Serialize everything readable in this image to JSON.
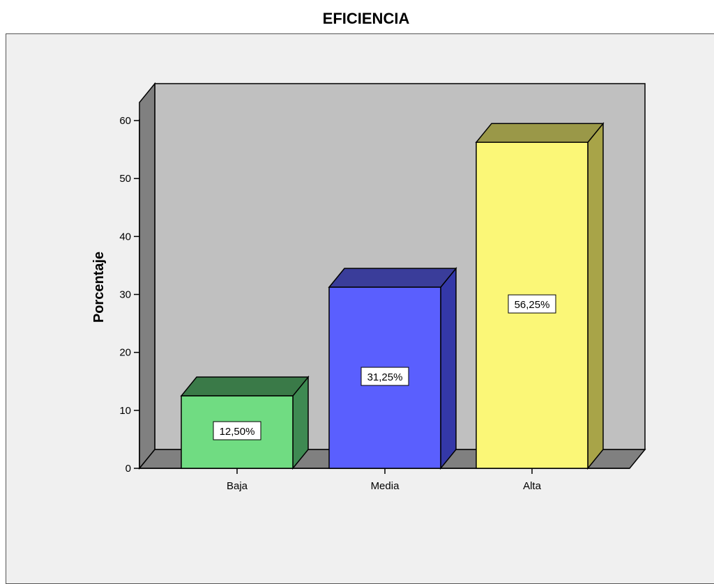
{
  "chart_data": {
    "type": "bar",
    "title": "EFICIENCIA",
    "xlabel": "",
    "ylabel": "Porcentaje",
    "categories": [
      "Baja",
      "Media",
      "Alta"
    ],
    "values": [
      12.5,
      31.25,
      56.25
    ],
    "data_labels": [
      "12,50%",
      "31,25%",
      "56,25%"
    ],
    "ylim": [
      0,
      60
    ],
    "yticks": [
      0,
      10,
      20,
      30,
      40,
      50,
      60
    ],
    "style": "3d",
    "grid": false,
    "legend": "none",
    "colors": {
      "bars_front": [
        "#70dc82",
        "#5a5ffe",
        "#fbf777"
      ],
      "bars_top": [
        "#3a7a48",
        "#3a3d9a",
        "#9a9848"
      ],
      "bars_side": [
        "#3e8a52",
        "#3438a8",
        "#a8a448"
      ],
      "back_wall": "#c0c0c0",
      "side_wall": "#808080",
      "floor": "#808080",
      "plot_background": "#f0f0f0"
    }
  }
}
